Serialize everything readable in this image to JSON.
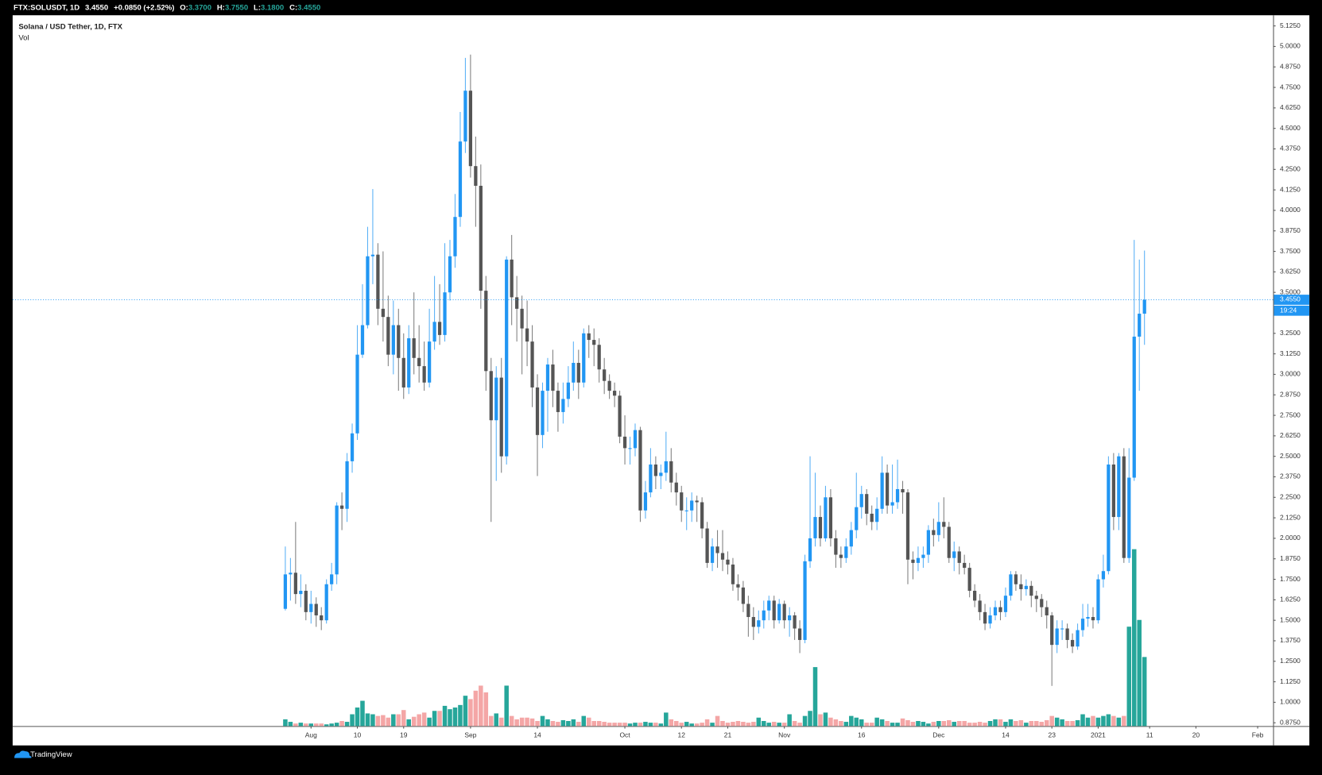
{
  "chart_data": {
    "type": "candlestick",
    "symbol": "FTX:SOLUSDT, 1D",
    "header_price": "3.4550",
    "header_change": "+0.0850 (+2.52%)",
    "ohlc_labels": [
      "O:",
      "H:",
      "L:",
      "C:"
    ],
    "ohlc_values": [
      "3.3700",
      "3.7550",
      "3.1800",
      "3.4550"
    ],
    "title": "Solana / USD Tether, 1D, FTX",
    "volume_label": "Vol",
    "brand": "TradingView",
    "last_price": {
      "value": 3.455,
      "label": "3.4550"
    },
    "countdown": "19:24",
    "up_color": "#2196f3",
    "down_color": "#555555",
    "volume_up_color": "#26a69a",
    "volume_down_color": "#f4a6a6",
    "last_price_color": "#2196f3",
    "grid": false,
    "open": [
      1.57,
      1.78,
      1.79,
      1.66,
      1.68,
      1.55,
      1.6,
      1.53,
      1.5,
      1.72,
      1.78,
      2.2,
      2.18,
      2.47,
      2.64,
      3.12,
      3.3,
      3.72,
      3.73,
      3.4,
      3.35,
      3.12,
      3.3,
      3.1,
      2.92,
      3.22,
      3.1,
      3.05,
      2.95,
      3.2,
      3.32,
      3.24,
      3.5,
      3.72,
      3.96,
      4.42,
      4.73,
      4.27,
      4.15,
      3.51,
      3.02,
      2.72,
      2.98,
      2.5,
      3.7,
      3.47,
      3.4,
      3.28,
      3.2,
      2.92,
      2.63,
      2.9,
      3.06,
      2.9,
      2.77,
      2.85,
      2.95,
      3.07,
      2.95,
      3.25,
      3.21,
      3.18,
      3.03,
      2.96,
      2.9,
      2.87,
      2.62,
      2.55,
      2.55,
      2.66,
      2.17,
      2.28,
      2.45,
      2.38,
      2.4,
      2.47,
      2.34,
      2.28,
      2.17,
      2.17,
      2.23,
      2.22,
      2.06,
      1.85,
      1.95,
      1.91,
      1.87,
      1.84,
      1.72,
      1.7,
      1.6,
      1.52,
      1.46,
      1.5,
      1.56,
      1.62,
      1.5,
      1.6,
      1.5,
      1.53,
      1.45,
      1.38,
      1.86,
      2.0,
      2.13,
      2.0,
      2.25,
      2.0,
      1.9,
      1.88,
      1.95,
      2.05,
      2.19,
      2.27,
      2.15,
      2.1,
      2.18,
      2.4,
      2.2,
      2.22,
      2.3,
      2.28,
      1.87,
      1.85,
      1.88,
      1.9,
      2.05,
      2.02,
      2.1,
      2.07,
      1.88,
      1.92,
      1.85,
      1.82,
      1.68,
      1.62,
      1.55,
      1.48,
      1.53,
      1.58,
      1.55,
      1.65,
      1.78,
      1.72,
      1.69,
      1.71,
      1.65,
      1.63,
      1.58,
      1.53,
      1.35,
      1.45,
      1.45,
      1.38,
      1.34,
      1.44,
      1.51,
      1.52,
      1.5,
      1.75,
      1.8,
      2.45,
      2.13,
      2.5,
      1.88,
      2.37,
      3.23,
      3.37
    ],
    "high": [
      1.95,
      1.88,
      2.1,
      1.78,
      1.72,
      1.68,
      1.64,
      1.58,
      1.75,
      1.85,
      2.22,
      2.28,
      2.52,
      2.7,
      3.3,
      3.55,
      3.9,
      4.13,
      3.8,
      3.75,
      3.48,
      3.45,
      3.4,
      3.25,
      3.3,
      3.5,
      3.3,
      3.2,
      3.4,
      3.6,
      3.55,
      3.8,
      3.82,
      4.1,
      4.6,
      4.93,
      4.95,
      4.45,
      4.28,
      3.6,
      3.1,
      3.05,
      3.1,
      3.72,
      3.85,
      3.6,
      3.48,
      3.45,
      3.3,
      3.0,
      2.95,
      3.1,
      3.15,
      2.95,
      2.95,
      3.05,
      3.2,
      3.15,
      3.28,
      3.3,
      3.28,
      3.22,
      3.1,
      3.0,
      2.95,
      2.9,
      2.75,
      2.62,
      2.7,
      2.68,
      2.35,
      2.55,
      2.5,
      2.45,
      2.65,
      2.55,
      2.4,
      2.32,
      2.25,
      2.28,
      2.26,
      2.25,
      2.1,
      2.0,
      2.05,
      2.05,
      1.92,
      1.88,
      1.78,
      1.74,
      1.65,
      1.58,
      1.56,
      1.62,
      1.65,
      1.65,
      1.63,
      1.62,
      1.58,
      1.55,
      1.5,
      1.9,
      2.5,
      2.4,
      2.2,
      2.32,
      2.3,
      2.05,
      1.95,
      2.0,
      2.1,
      2.4,
      2.32,
      2.3,
      2.2,
      2.25,
      2.5,
      2.45,
      2.45,
      2.48,
      2.35,
      2.3,
      1.92,
      1.95,
      1.95,
      2.08,
      2.12,
      2.22,
      2.25,
      2.1,
      1.98,
      1.95,
      1.9,
      1.85,
      1.72,
      1.66,
      1.6,
      1.58,
      1.62,
      1.62,
      1.7,
      1.8,
      1.8,
      1.78,
      1.75,
      1.74,
      1.68,
      1.66,
      1.62,
      1.55,
      1.5,
      1.5,
      1.48,
      1.42,
      1.48,
      1.6,
      1.6,
      1.58,
      1.78,
      1.9,
      2.5,
      2.52,
      2.52,
      2.55,
      2.55,
      3.82,
      3.7,
      3.755
    ],
    "low": [
      1.56,
      1.62,
      1.6,
      1.58,
      1.5,
      1.48,
      1.46,
      1.44,
      1.48,
      1.68,
      1.72,
      2.05,
      2.1,
      2.4,
      2.6,
      3.1,
      3.28,
      3.55,
      3.3,
      3.2,
      3.05,
      3.0,
      2.9,
      2.85,
      2.88,
      3.0,
      2.95,
      2.9,
      2.92,
      3.15,
      3.18,
      3.2,
      3.45,
      3.65,
      3.9,
      4.35,
      4.2,
      3.9,
      3.4,
      2.9,
      2.1,
      2.35,
      2.4,
      2.45,
      3.3,
      3.2,
      3.0,
      3.05,
      2.8,
      2.38,
      2.55,
      2.65,
      2.8,
      2.65,
      2.7,
      2.8,
      2.9,
      2.85,
      2.92,
      3.1,
      3.05,
      2.95,
      2.88,
      2.85,
      2.8,
      2.58,
      2.45,
      2.45,
      2.5,
      2.1,
      2.12,
      2.25,
      2.3,
      2.3,
      2.35,
      2.28,
      2.2,
      2.1,
      2.05,
      2.1,
      2.1,
      2.0,
      1.82,
      1.8,
      1.82,
      1.8,
      1.78,
      1.68,
      1.62,
      1.55,
      1.4,
      1.38,
      1.42,
      1.45,
      1.5,
      1.45,
      1.48,
      1.45,
      1.4,
      1.38,
      1.3,
      1.36,
      1.82,
      1.95,
      1.95,
      1.98,
      1.95,
      1.82,
      1.82,
      1.85,
      1.9,
      2.0,
      2.12,
      2.08,
      2.05,
      2.05,
      2.15,
      2.15,
      2.15,
      2.18,
      2.15,
      1.72,
      1.75,
      1.8,
      1.82,
      1.85,
      1.95,
      1.98,
      2.0,
      1.85,
      1.8,
      1.78,
      1.78,
      1.64,
      1.58,
      1.5,
      1.44,
      1.45,
      1.5,
      1.5,
      1.52,
      1.62,
      1.68,
      1.62,
      1.65,
      1.58,
      1.55,
      1.52,
      1.45,
      1.1,
      1.3,
      1.38,
      1.33,
      1.3,
      1.32,
      1.4,
      1.46,
      1.45,
      1.48,
      1.7,
      1.78,
      2.05,
      2.05,
      1.85,
      1.85,
      2.35,
      2.9,
      3.18
    ],
    "close": [
      1.78,
      1.79,
      1.66,
      1.68,
      1.55,
      1.6,
      1.53,
      1.5,
      1.72,
      1.78,
      2.2,
      2.18,
      2.47,
      2.64,
      3.12,
      3.3,
      3.72,
      3.73,
      3.4,
      3.35,
      3.12,
      3.3,
      3.1,
      2.92,
      3.22,
      3.1,
      3.05,
      2.95,
      3.2,
      3.32,
      3.24,
      3.5,
      3.72,
      3.96,
      4.42,
      4.73,
      4.27,
      4.15,
      3.51,
      3.02,
      2.72,
      2.98,
      2.5,
      3.7,
      3.47,
      3.4,
      3.28,
      3.2,
      2.92,
      2.63,
      2.9,
      3.06,
      2.9,
      2.77,
      2.85,
      2.95,
      3.07,
      2.95,
      3.25,
      3.21,
      3.18,
      3.03,
      2.96,
      2.9,
      2.87,
      2.62,
      2.55,
      2.55,
      2.66,
      2.17,
      2.28,
      2.45,
      2.38,
      2.4,
      2.47,
      2.34,
      2.28,
      2.17,
      2.17,
      2.23,
      2.22,
      2.06,
      1.85,
      1.95,
      1.91,
      1.87,
      1.84,
      1.72,
      1.7,
      1.6,
      1.52,
      1.46,
      1.5,
      1.56,
      1.62,
      1.5,
      1.6,
      1.5,
      1.53,
      1.45,
      1.38,
      1.86,
      2.0,
      2.13,
      2.0,
      2.25,
      2.0,
      1.9,
      1.88,
      1.95,
      2.05,
      2.19,
      2.27,
      2.15,
      2.1,
      2.18,
      2.4,
      2.2,
      2.22,
      2.3,
      2.28,
      1.87,
      1.85,
      1.88,
      1.9,
      2.05,
      2.02,
      2.1,
      2.07,
      1.88,
      1.92,
      1.85,
      1.82,
      1.68,
      1.62,
      1.55,
      1.48,
      1.53,
      1.58,
      1.55,
      1.65,
      1.78,
      1.72,
      1.69,
      1.71,
      1.65,
      1.63,
      1.58,
      1.53,
      1.35,
      1.45,
      1.45,
      1.38,
      1.34,
      1.44,
      1.51,
      1.52,
      1.5,
      1.75,
      1.8,
      2.45,
      2.13,
      2.5,
      1.88,
      2.37,
      3.23,
      3.37,
      3.455
    ],
    "volume": [
      8,
      5,
      3,
      4,
      3,
      3,
      3,
      3,
      2,
      3,
      4,
      6,
      5,
      14,
      22,
      30,
      15,
      14,
      12,
      13,
      10,
      14,
      14,
      19,
      8,
      11,
      14,
      16,
      10,
      18,
      18,
      24,
      20,
      22,
      25,
      36,
      32,
      42,
      48,
      40,
      12,
      15,
      10,
      48,
      12,
      8,
      10,
      10,
      9,
      6,
      12,
      8,
      6,
      5,
      7,
      6,
      8,
      5,
      12,
      10,
      6,
      6,
      5,
      4,
      4,
      4,
      4,
      3,
      4,
      4,
      5,
      4,
      4,
      3,
      16,
      8,
      6,
      4,
      5,
      3,
      3,
      4,
      8,
      4,
      12,
      6,
      4,
      5,
      6,
      5,
      4,
      5,
      10,
      6,
      4,
      5,
      4,
      4,
      14,
      6,
      4,
      12,
      18,
      70,
      14,
      16,
      10,
      8,
      6,
      5,
      12,
      10,
      8,
      4,
      4,
      10,
      8,
      6,
      4,
      4,
      9,
      7,
      5,
      6,
      5,
      3,
      5,
      6,
      6,
      7,
      5,
      6,
      6,
      4,
      4,
      5,
      4,
      6,
      8,
      8,
      5,
      8,
      6,
      7,
      4,
      6,
      6,
      5,
      7,
      12,
      10,
      8,
      6,
      6,
      7,
      14,
      10,
      12,
      10,
      12,
      14,
      12,
      10,
      12,
      118,
      210,
      126,
      82
    ],
    "xlim": [
      -53,
      192
    ],
    "xticks": [
      {
        "value": 5,
        "label": "Aug"
      },
      {
        "value": 14,
        "label": "10"
      },
      {
        "value": 23,
        "label": "19"
      },
      {
        "value": 36,
        "label": "Sep"
      },
      {
        "value": 49,
        "label": "14"
      },
      {
        "value": 66,
        "label": "Oct"
      },
      {
        "value": 77,
        "label": "12"
      },
      {
        "value": 86,
        "label": "21"
      },
      {
        "value": 97,
        "label": "Nov"
      },
      {
        "value": 112,
        "label": "16"
      },
      {
        "value": 127,
        "label": "Dec"
      },
      {
        "value": 140,
        "label": "14"
      },
      {
        "value": 149,
        "label": "23"
      },
      {
        "value": 158,
        "label": "2021"
      },
      {
        "value": 168,
        "label": "11"
      },
      {
        "value": 177,
        "label": "20"
      },
      {
        "value": 189,
        "label": "Feb"
      }
    ],
    "ylim": [
      0.855,
      5.19
    ],
    "yticks": [
      {
        "value": 0.875,
        "label": "0.8750"
      },
      {
        "value": 1.0,
        "label": "1.0000"
      },
      {
        "value": 1.125,
        "label": "1.1250"
      },
      {
        "value": 1.25,
        "label": "1.2500"
      },
      {
        "value": 1.375,
        "label": "1.3750"
      },
      {
        "value": 1.5,
        "label": "1.5000"
      },
      {
        "value": 1.625,
        "label": "1.6250"
      },
      {
        "value": 1.75,
        "label": "1.7500"
      },
      {
        "value": 1.875,
        "label": "1.8750"
      },
      {
        "value": 2.0,
        "label": "2.0000"
      },
      {
        "value": 2.125,
        "label": "2.1250"
      },
      {
        "value": 2.25,
        "label": "2.2500"
      },
      {
        "value": 2.375,
        "label": "2.3750"
      },
      {
        "value": 2.5,
        "label": "2.5000"
      },
      {
        "value": 2.625,
        "label": "2.6250"
      },
      {
        "value": 2.75,
        "label": "2.7500"
      },
      {
        "value": 2.875,
        "label": "2.8750"
      },
      {
        "value": 3.0,
        "label": "3.0000"
      },
      {
        "value": 3.125,
        "label": "3.1250"
      },
      {
        "value": 3.25,
        "label": "3.2500"
      },
      {
        "value": 3.375,
        "label": "3.3750"
      },
      {
        "value": 3.5,
        "label": "3.5000"
      },
      {
        "value": 3.625,
        "label": "3.6250"
      },
      {
        "value": 3.75,
        "label": "3.7500"
      },
      {
        "value": 3.875,
        "label": "3.8750"
      },
      {
        "value": 4.0,
        "label": "4.0000"
      },
      {
        "value": 4.125,
        "label": "4.1250"
      },
      {
        "value": 4.25,
        "label": "4.2500"
      },
      {
        "value": 4.375,
        "label": "4.3750"
      },
      {
        "value": 4.5,
        "label": "4.5000"
      },
      {
        "value": 4.625,
        "label": "4.6250"
      },
      {
        "value": 4.75,
        "label": "4.7500"
      },
      {
        "value": 4.875,
        "label": "4.8750"
      },
      {
        "value": 5.0,
        "label": "5.0000"
      },
      {
        "value": 5.125,
        "label": "5.1250"
      }
    ]
  }
}
